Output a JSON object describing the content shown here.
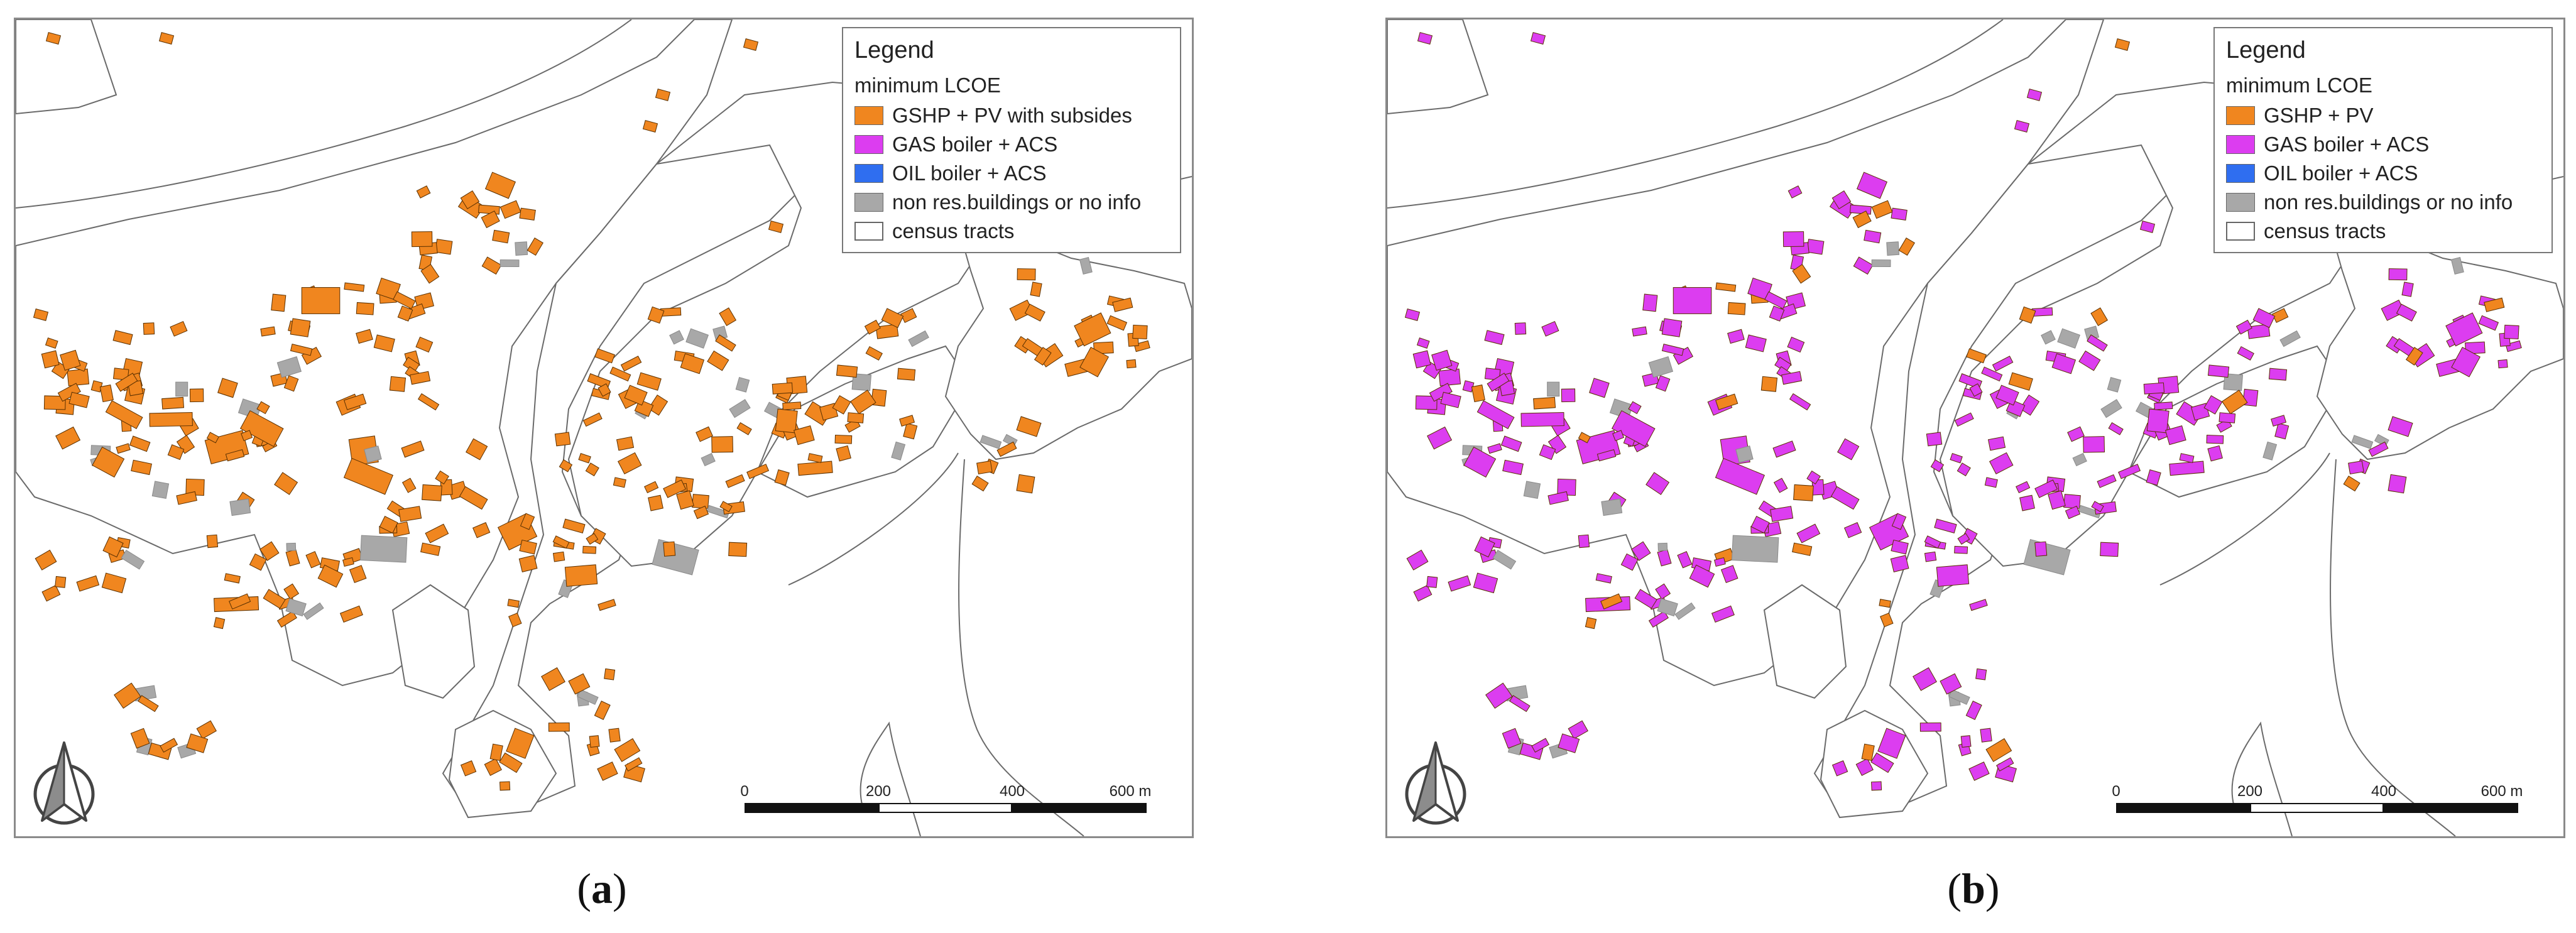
{
  "colors": {
    "gshp": "#f0861f",
    "gas": "#dc3df0",
    "oil": "#2f6ef0",
    "nonres": "#a8a8a8",
    "tract_fill": "#ffffff",
    "tract_stroke": "#6a6a6a",
    "building_stroke": "#5a3000"
  },
  "icons": {
    "north_arrow": "north-arrow-icon"
  },
  "panels": [
    {
      "id": "a",
      "caption": {
        "open": "(",
        "letter": "a",
        "close": ")"
      },
      "legend": {
        "title": "Legend",
        "subtitle": "minimum LCOE",
        "items": [
          {
            "label": "GSHP + PV with subsides",
            "color": "#f0861f"
          },
          {
            "label": "GAS boiler + ACS",
            "color": "#dc3df0"
          },
          {
            "label": "OIL boiler + ACS",
            "color": "#2f6ef0"
          },
          {
            "label": "non res.buildings or no info",
            "color": "#a8a8a8"
          },
          {
            "label": "census tracts",
            "color": "#ffffff"
          }
        ]
      },
      "scale": {
        "ticks": [
          "0",
          "200",
          "400",
          "600 m"
        ]
      },
      "building_mix": {
        "gshp": 1.0,
        "gas": 0.0
      }
    },
    {
      "id": "b",
      "caption": {
        "open": "(",
        "letter": "b",
        "close": ")"
      },
      "legend": {
        "title": "Legend",
        "subtitle": "minimum LCOE",
        "items": [
          {
            "label": "GSHP + PV",
            "color": "#f0861f"
          },
          {
            "label": "GAS boiler + ACS",
            "color": "#dc3df0"
          },
          {
            "label": "OIL boiler + ACS",
            "color": "#2f6ef0"
          },
          {
            "label": "non res.buildings or no info",
            "color": "#a8a8a8"
          },
          {
            "label": "census tracts",
            "color": "#ffffff"
          }
        ]
      },
      "scale": {
        "ticks": [
          "0",
          "200",
          "400",
          "600 m"
        ]
      },
      "building_mix": {
        "gshp": 0.1,
        "gas": 0.9
      }
    }
  ]
}
